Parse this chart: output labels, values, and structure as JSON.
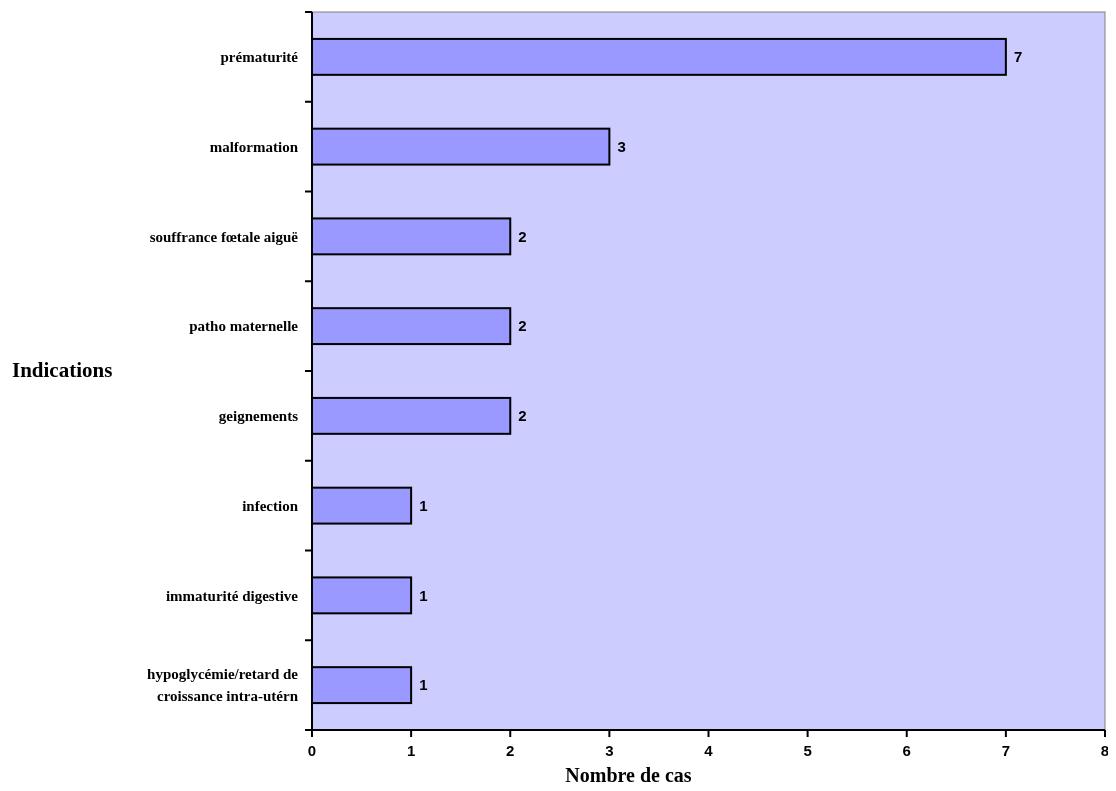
{
  "chart_data": {
    "type": "bar",
    "orientation": "horizontal",
    "xlabel": "Nombre de cas",
    "ylabel": "Indications",
    "categories": [
      "prématurité",
      "malformation",
      "souffrance fœtale aiguë",
      "patho maternelle",
      "geignements",
      "infection",
      "immaturité digestive",
      "hypoglycémie/retard de croissance intra-utérn"
    ],
    "values": [
      7,
      3,
      2,
      2,
      2,
      1,
      1,
      1
    ],
    "color": "#9999ff",
    "xlim": [
      0,
      8
    ],
    "xticks": [
      0,
      1,
      2,
      3,
      4,
      5,
      6,
      7,
      8
    ],
    "data_labels": true,
    "grid": false
  }
}
